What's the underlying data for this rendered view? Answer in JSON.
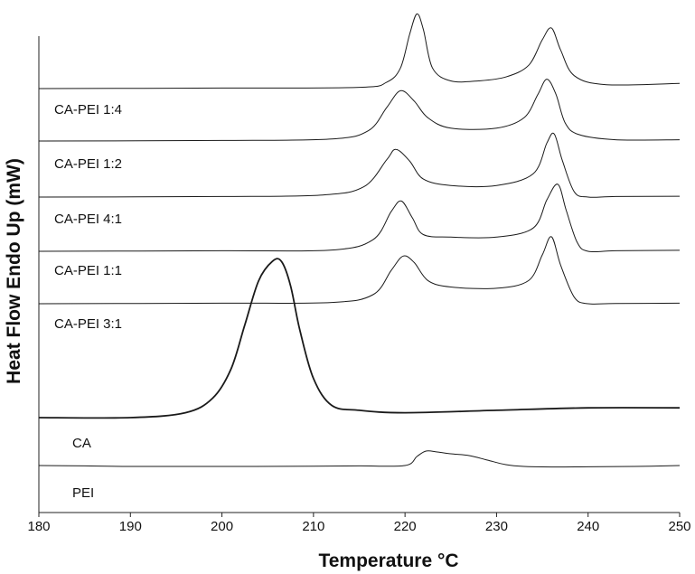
{
  "chart_data": {
    "type": "line",
    "xlabel": "Temperature °C",
    "ylabel": "Heat Flow Endo Up (mW)",
    "xlim": [
      180,
      250
    ],
    "xticks": [
      180,
      190,
      200,
      210,
      220,
      230,
      240,
      250
    ],
    "series": [
      {
        "name": "",
        "x": [
          180,
          200,
          215,
          218,
          219.5,
          220.5,
          221.3,
          222,
          223,
          225,
          228,
          231,
          233.5,
          235,
          236,
          237,
          238.5,
          242,
          250
        ],
        "y": [
          0,
          0.02,
          0.05,
          0.25,
          0.8,
          2.1,
          2.9,
          2.3,
          0.8,
          0.3,
          0.3,
          0.45,
          0.9,
          1.9,
          2.35,
          1.5,
          0.5,
          0.15,
          0.2
        ]
      },
      {
        "name": "CA-PEI 1:4",
        "x": [
          180,
          200,
          212,
          216,
          218,
          219.5,
          221,
          222.5,
          225,
          230,
          233,
          234.5,
          235.5,
          236.5,
          237.5,
          239,
          243,
          250
        ],
        "y": [
          0,
          0.02,
          0.08,
          0.4,
          1.3,
          1.95,
          1.55,
          0.9,
          0.5,
          0.5,
          0.9,
          1.8,
          2.4,
          1.8,
          0.7,
          0.25,
          0.05,
          0.05
        ]
      },
      {
        "name": "CA-PEI 1:2",
        "x": [
          180,
          200,
          211,
          215.5,
          218,
          219,
          220.5,
          222,
          225,
          230,
          234,
          235.5,
          236.3,
          237.2,
          238.5,
          240,
          243,
          250
        ],
        "y": [
          0,
          0.02,
          0.08,
          0.4,
          1.45,
          1.85,
          1.4,
          0.7,
          0.45,
          0.45,
          0.9,
          2.1,
          2.45,
          1.4,
          0.2,
          0,
          0.02,
          0.03
        ]
      },
      {
        "name": "CA-PEI 4:1",
        "x": [
          180,
          200,
          212,
          216.5,
          218.5,
          219.6,
          220.8,
          222,
          225,
          230,
          234,
          235.5,
          236.7,
          237.6,
          238.8,
          240,
          243,
          250
        ],
        "y": [
          0,
          0.02,
          0.05,
          0.45,
          1.55,
          1.95,
          1.3,
          0.65,
          0.55,
          0.55,
          0.9,
          2.0,
          2.6,
          1.6,
          0.35,
          0,
          0.02,
          0.04
        ]
      },
      {
        "name": "CA-PEI 1:1",
        "x": [
          180,
          200,
          212,
          216.5,
          218.5,
          219.8,
          221,
          222.5,
          225,
          230,
          233.5,
          235,
          236,
          237,
          238.5,
          240,
          243,
          250
        ],
        "y": [
          0,
          0.02,
          0.05,
          0.35,
          1.3,
          1.85,
          1.6,
          0.9,
          0.65,
          0.6,
          0.9,
          1.9,
          2.6,
          1.5,
          0.25,
          0,
          0.01,
          0.02
        ]
      },
      {
        "name": "CA-PEI 3:1",
        "x": [
          180,
          190,
          196,
          199,
          201,
          202.5,
          204,
          205.5,
          206.5,
          207.5,
          208.5,
          210,
          212,
          215,
          220,
          230,
          240,
          250
        ],
        "y": [
          -2.2,
          -2.2,
          -2.1,
          -1.8,
          -1.2,
          -0.3,
          0.6,
          1.0,
          1.0,
          0.5,
          -0.4,
          -1.4,
          -1.95,
          -2.05,
          -2.1,
          -2.05,
          -2.0,
          -2.0
        ]
      },
      {
        "name": "CA",
        "x": [
          180,
          185,
          190,
          200,
          210,
          215,
          220,
          221.3,
          222.3,
          223.5,
          225,
          227,
          229,
          231,
          233,
          236,
          240,
          245,
          250
        ],
        "y": [
          -3.1,
          -3.12,
          -3.15,
          -3.15,
          -3.14,
          -3.12,
          -3.1,
          -2.6,
          -2.3,
          -2.35,
          -2.45,
          -2.55,
          -2.8,
          -3.05,
          -3.15,
          -3.18,
          -3.17,
          -3.15,
          -3.1
        ]
      }
    ],
    "curve_labels": [
      "CA-PEI 1:4",
      "CA-PEI 1:2",
      "CA-PEI 4:1",
      "CA-PEI 1:1",
      "CA-PEI 3:1",
      "CA",
      "PEI"
    ],
    "grid": false,
    "legend": "none"
  }
}
